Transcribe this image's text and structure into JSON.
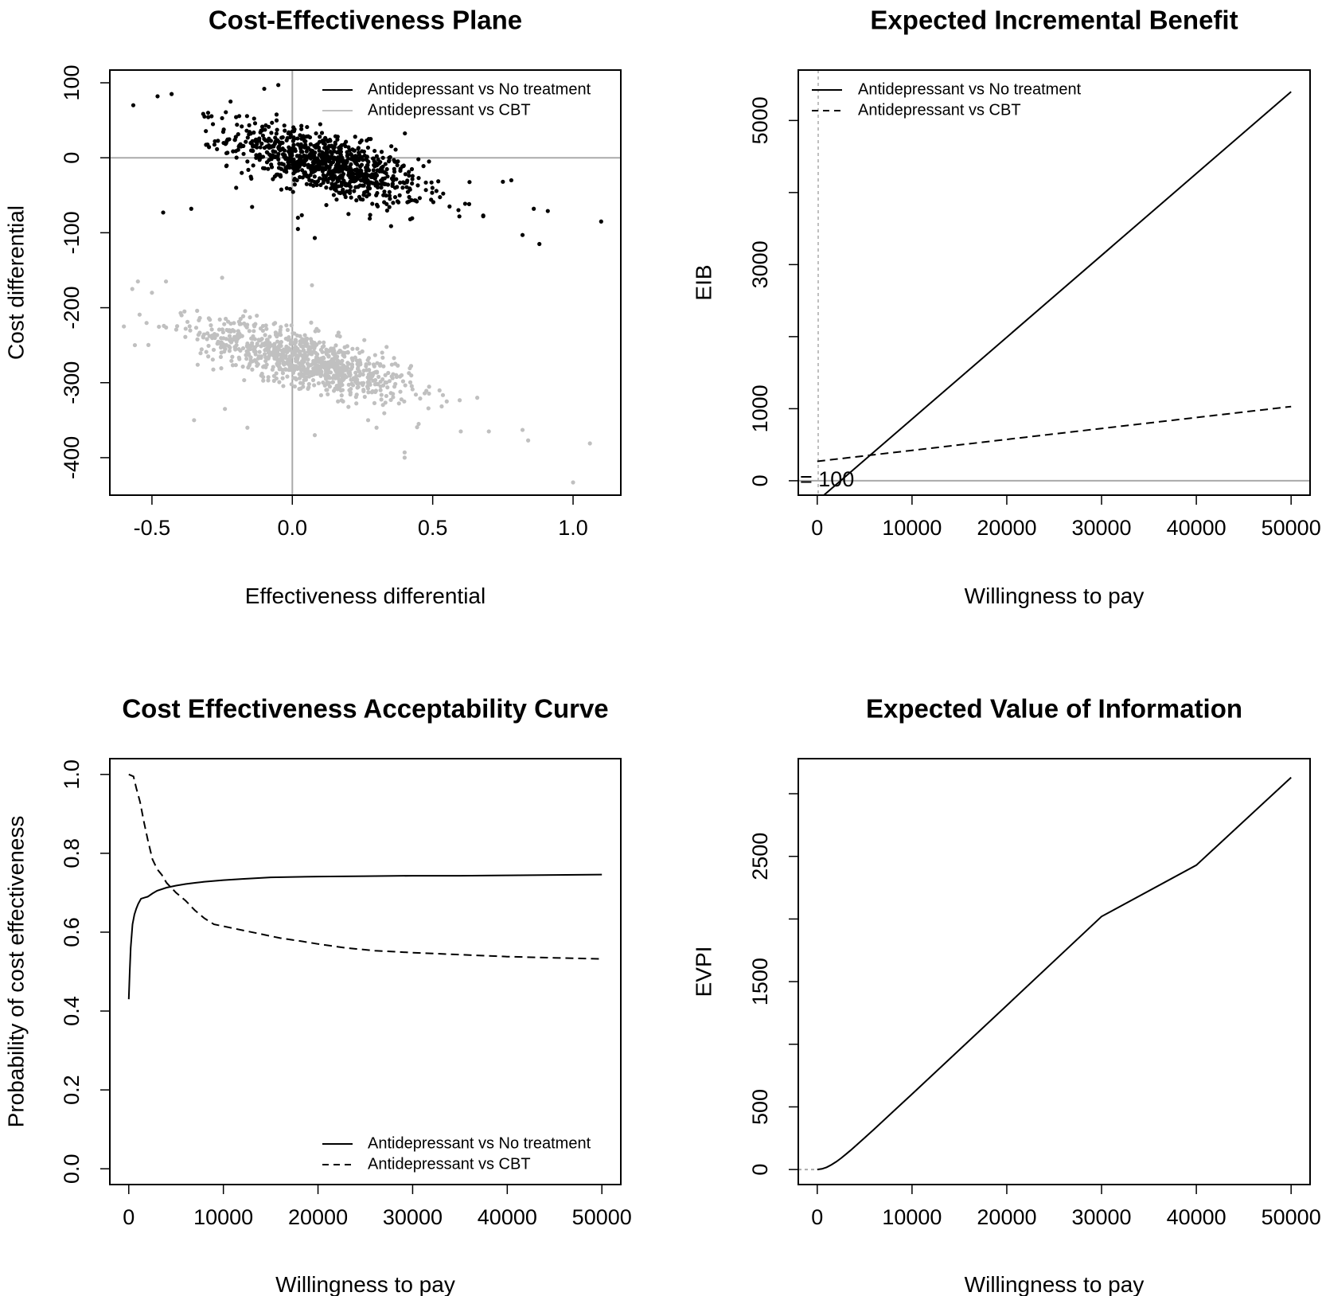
{
  "chart_data": [
    {
      "type": "scatter",
      "title": "Cost-Effectiveness Plane",
      "xlabel": "Effectiveness differential",
      "ylabel": "Cost differential",
      "xlim": [
        -0.65,
        1.17
      ],
      "ylim": [
        -450,
        117
      ],
      "xticks": [
        -0.5,
        0.0,
        0.5,
        1.0
      ],
      "xtick_labels": [
        "-0.5",
        "0.0",
        "0.5",
        "1.0"
      ],
      "yticks": [
        100,
        0,
        -100,
        -200,
        -300,
        -400
      ],
      "ytick_labels": [
        "100",
        "0",
        "-100",
        "-200",
        "-300",
        "-400"
      ],
      "ref_lines": {
        "x": 0,
        "y": 0,
        "color": "#aaaaaa"
      },
      "legend_position": "top-right",
      "series": [
        {
          "name": "Antidepressant  vs  No treatment",
          "color": "#000000",
          "cloud": {
            "n": 900,
            "center": [
              0.12,
              -8
            ],
            "sd_x": 0.17,
            "slope": -100,
            "sd_y": 20
          },
          "points": [
            [
              -0.48,
              82
            ],
            [
              -0.43,
              85
            ],
            [
              -0.1,
              92
            ],
            [
              -0.05,
              97
            ],
            [
              -0.46,
              -73
            ],
            [
              -0.36,
              -68
            ],
            [
              0.02,
              -80
            ],
            [
              0.02,
              -95
            ],
            [
              0.08,
              -107
            ],
            [
              0.82,
              -103
            ],
            [
              0.88,
              -115
            ],
            [
              1.1,
              -85
            ],
            [
              0.91,
              -71
            ],
            [
              0.86,
              -68
            ],
            [
              0.78,
              -30
            ],
            [
              0.75,
              -32
            ],
            [
              0.68,
              -77
            ],
            [
              0.68,
              -78
            ],
            [
              0.56,
              -65
            ],
            [
              0.42,
              -82
            ],
            [
              0.2,
              -75
            ],
            [
              -0.2,
              -40
            ],
            [
              -0.16,
              -5
            ],
            [
              -0.22,
              75
            ],
            [
              -0.3,
              60
            ]
          ]
        },
        {
          "name": "Antidepressant  vs  CBT",
          "color": "#c0c0c0",
          "cloud": {
            "n": 900,
            "center": [
              0.05,
              -270
            ],
            "sd_x": 0.19,
            "slope": -95,
            "sd_y": 18
          },
          "points": [
            [
              -0.57,
              -175
            ],
            [
              -0.55,
              -165
            ],
            [
              -0.6,
              -225
            ],
            [
              -0.5,
              -180
            ],
            [
              -0.45,
              -165
            ],
            [
              -0.25,
              -160
            ],
            [
              -0.1,
              -250
            ],
            [
              -0.35,
              -350
            ],
            [
              -0.24,
              -335
            ],
            [
              -0.16,
              -360
            ],
            [
              0.07,
              -170
            ],
            [
              0.45,
              -355
            ],
            [
              0.55,
              -325
            ],
            [
              0.6,
              -365
            ],
            [
              0.7,
              -365
            ],
            [
              0.82,
              -363
            ],
            [
              0.84,
              -377
            ],
            [
              1.06,
              -381
            ],
            [
              1.0,
              -433
            ],
            [
              0.4,
              -393
            ],
            [
              0.4,
              -400
            ],
            [
              0.27,
              -350
            ],
            [
              0.08,
              -370
            ],
            [
              0.3,
              -360
            ]
          ]
        }
      ]
    },
    {
      "type": "line",
      "title": "Expected Incremental Benefit",
      "xlabel": "Willingness to pay",
      "ylabel": "EIB",
      "xlim": [
        -2000,
        52000
      ],
      "ylim": [
        -200,
        5700
      ],
      "xticks": [
        0,
        10000,
        20000,
        30000,
        40000,
        50000
      ],
      "xtick_labels": [
        "0",
        "10000",
        "20000",
        "30000",
        "40000",
        "50000"
      ],
      "yticks": [
        0,
        1000,
        2000,
        3000,
        4000,
        5000
      ],
      "ytick_labels": [
        "0",
        "1000",
        "",
        "3000",
        "",
        "5000"
      ],
      "hline": {
        "y": 0,
        "color": "#aaaaaa"
      },
      "vline": {
        "x": 100,
        "color": "#aaaaaa",
        "dashed": true
      },
      "annotation": "= 100",
      "legend_position": "top-left",
      "series": [
        {
          "name": "Antidepressant vs No treatment",
          "dash": "solid",
          "x": [
            0,
            50000
          ],
          "y": [
            -280,
            5400
          ]
        },
        {
          "name": "Antidepressant vs CBT",
          "dash": "dashed",
          "x": [
            0,
            50000
          ],
          "y": [
            270,
            1030
          ]
        }
      ]
    },
    {
      "type": "line",
      "title": "Cost Effectiveness Acceptability Curve",
      "xlabel": "Willingness to pay",
      "ylabel": "Probability of cost effectiveness",
      "xlim": [
        -2000,
        52000
      ],
      "ylim": [
        -0.04,
        1.04
      ],
      "xticks": [
        0,
        10000,
        20000,
        30000,
        40000,
        50000
      ],
      "xtick_labels": [
        "0",
        "10000",
        "20000",
        "30000",
        "40000",
        "50000"
      ],
      "yticks": [
        0.0,
        0.2,
        0.4,
        0.6,
        0.8,
        1.0
      ],
      "ytick_labels": [
        "0.0",
        "0.2",
        "0.4",
        "0.6",
        "0.8",
        "1.0"
      ],
      "legend_position": "bottom-right",
      "series": [
        {
          "name": "Antidepressant  vs  No treatment",
          "dash": "solid",
          "x": [
            0,
            100,
            200,
            400,
            600,
            800,
            1000,
            1300,
            1700,
            2000,
            2500,
            3000,
            4000,
            5000,
            6000,
            7000,
            8000,
            9000,
            10000,
            12000,
            15000,
            20000,
            25000,
            30000,
            35000,
            40000,
            45000,
            50000
          ],
          "y": [
            0.43,
            0.5,
            0.56,
            0.62,
            0.645,
            0.66,
            0.672,
            0.685,
            0.688,
            0.69,
            0.698,
            0.705,
            0.713,
            0.718,
            0.722,
            0.725,
            0.728,
            0.73,
            0.732,
            0.735,
            0.739,
            0.741,
            0.742,
            0.743,
            0.743,
            0.744,
            0.745,
            0.746
          ]
        },
        {
          "name": "Antidepressant  vs  CBT",
          "dash": "dashed",
          "x": [
            0,
            500,
            800,
            1200,
            1600,
            2000,
            2500,
            3000,
            3500,
            4000,
            5000,
            6000,
            7000,
            8000,
            9000,
            10000,
            12000,
            14000,
            16000,
            18000,
            20000,
            23000,
            26000,
            30000,
            35000,
            40000,
            45000,
            50000
          ],
          "y": [
            1.0,
            0.995,
            0.965,
            0.93,
            0.88,
            0.835,
            0.785,
            0.76,
            0.745,
            0.725,
            0.7,
            0.68,
            0.655,
            0.635,
            0.62,
            0.615,
            0.605,
            0.595,
            0.585,
            0.578,
            0.57,
            0.56,
            0.553,
            0.548,
            0.543,
            0.538,
            0.535,
            0.532
          ]
        }
      ]
    },
    {
      "type": "line",
      "title": "Expected Value of Information",
      "xlabel": "Willingness to pay",
      "ylabel": "EVPI",
      "xlim": [
        -2000,
        52000
      ],
      "ylim": [
        -120,
        3280
      ],
      "xticks": [
        0,
        10000,
        20000,
        30000,
        40000,
        50000
      ],
      "xtick_labels": [
        "0",
        "10000",
        "20000",
        "30000",
        "40000",
        "50000"
      ],
      "yticks": [
        0,
        500,
        1000,
        1500,
        2000,
        2500,
        3000
      ],
      "ytick_labels": [
        "0",
        "500",
        "",
        "1500",
        "",
        "2500",
        ""
      ],
      "hline": {
        "x_to": 200,
        "y": 0,
        "color": "#aaaaaa",
        "dashed": true
      },
      "series": [
        {
          "name": "",
          "dash": "solid",
          "x": [
            0,
            500,
            1000,
            1500,
            2000,
            2500,
            3000,
            3500,
            4000,
            5000,
            6000,
            8000,
            10000,
            20000,
            30000,
            40000,
            50000
          ],
          "y": [
            0,
            5,
            18,
            38,
            62,
            90,
            120,
            152,
            185,
            253,
            322,
            462,
            602,
            1310,
            2020,
            2430,
            3130
          ]
        }
      ]
    }
  ]
}
